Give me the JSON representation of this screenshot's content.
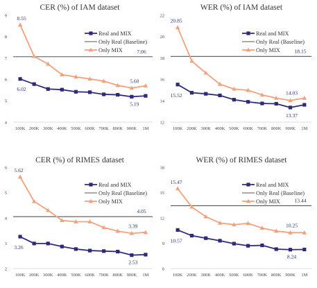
{
  "chart_data": [
    {
      "type": "line",
      "title": "CER (%) of IAM dataset",
      "categories": [
        "100K",
        "200K",
        "300K",
        "400K",
        "500K",
        "600K",
        "700K",
        "800K",
        "900K",
        "1M"
      ],
      "yticks": [
        "4",
        "5",
        "6",
        "7",
        "8",
        "9"
      ],
      "ylim": [
        4,
        9
      ],
      "grid": false,
      "legend_position": "top-right",
      "series": [
        {
          "name": "Real and MIX",
          "color": "#2e2a7a",
          "marker": "square",
          "values": [
            6.02,
            5.78,
            5.55,
            5.52,
            5.42,
            5.4,
            5.3,
            5.28,
            5.19,
            5.23
          ]
        },
        {
          "name": "Only Real (Baseline)",
          "color": "#555555",
          "marker": "none",
          "values": [
            7.06,
            7.06,
            7.06,
            7.06,
            7.06,
            7.06,
            7.06,
            7.06,
            7.06,
            7.06
          ]
        },
        {
          "name": "Only MIX",
          "color": "#f4a07a",
          "marker": "triangle",
          "values": [
            8.55,
            7.08,
            6.72,
            6.22,
            6.12,
            6.02,
            5.92,
            5.72,
            5.6,
            5.7
          ]
        }
      ],
      "data_labels": [
        {
          "series": 0,
          "index": 0,
          "text": "6.02"
        },
        {
          "series": 2,
          "index": 0,
          "text": "8.55"
        },
        {
          "series": 1,
          "index": 9,
          "text": "7.06"
        },
        {
          "series": 2,
          "index": 8,
          "text": "5.60"
        },
        {
          "series": 0,
          "index": 8,
          "text": "5.19"
        }
      ]
    },
    {
      "type": "line",
      "title": "WER (%) of IAM dataset",
      "categories": [
        "100K",
        "200K",
        "300K",
        "400K",
        "500K",
        "600K",
        "700K",
        "800K",
        "900K",
        "1M"
      ],
      "yticks": [
        "12",
        "14",
        "16",
        "18",
        "20",
        "22"
      ],
      "ylim": [
        12,
        22
      ],
      "grid": false,
      "legend_position": "top-right",
      "series": [
        {
          "name": "Real and MIX",
          "color": "#2e2a7a",
          "marker": "square",
          "values": [
            15.52,
            14.75,
            14.65,
            14.5,
            14.1,
            13.9,
            13.75,
            13.72,
            13.37,
            13.62
          ]
        },
        {
          "name": "Only Real (Baseline)",
          "color": "#555555",
          "marker": "none",
          "values": [
            18.15,
            18.15,
            18.15,
            18.15,
            18.15,
            18.15,
            18.15,
            18.15,
            18.15,
            18.15
          ]
        },
        {
          "name": "Only MIX",
          "color": "#f4a07a",
          "marker": "triangle",
          "values": [
            20.85,
            17.72,
            16.6,
            15.55,
            15.1,
            14.98,
            14.55,
            14.25,
            14.03,
            14.25
          ]
        }
      ],
      "data_labels": [
        {
          "series": 2,
          "index": 0,
          "text": "20.85"
        },
        {
          "series": 0,
          "index": 0,
          "text": "15.52"
        },
        {
          "series": 1,
          "index": 9,
          "text": "18.15"
        },
        {
          "series": 2,
          "index": 8,
          "text": "14.03"
        },
        {
          "series": 0,
          "index": 8,
          "text": "13.37"
        }
      ]
    },
    {
      "type": "line",
      "title": "CER (%) of RIMES dataset",
      "categories": [
        "100K",
        "200K",
        "300K",
        "400K",
        "500K",
        "600K",
        "700K",
        "800K",
        "900K",
        "1M"
      ],
      "yticks": [
        "2",
        "3",
        "4",
        "5",
        "6"
      ],
      "ylim": [
        2,
        6
      ],
      "grid": false,
      "legend_position": "top-right",
      "series": [
        {
          "name": "Real and MIX",
          "color": "#2e2a7a",
          "marker": "square",
          "values": [
            3.26,
            2.99,
            2.99,
            2.87,
            2.77,
            2.71,
            2.69,
            2.67,
            2.53,
            2.55
          ]
        },
        {
          "name": "Only Real (Baseline)",
          "color": "#555555",
          "marker": "none",
          "values": [
            4.05,
            4.05,
            4.05,
            4.05,
            4.05,
            4.05,
            4.05,
            4.05,
            4.05,
            4.05
          ]
        },
        {
          "name": "Only MIX",
          "color": "#f4a07a",
          "marker": "triangle",
          "values": [
            5.62,
            4.65,
            4.3,
            3.9,
            3.85,
            3.85,
            3.62,
            3.48,
            3.39,
            3.43
          ]
        }
      ],
      "data_labels": [
        {
          "series": 2,
          "index": 0,
          "text": "5.62"
        },
        {
          "series": 0,
          "index": 0,
          "text": "3.26"
        },
        {
          "series": 1,
          "index": 9,
          "text": "4.05"
        },
        {
          "series": 2,
          "index": 8,
          "text": "3.39"
        },
        {
          "series": 0,
          "index": 8,
          "text": "2.53"
        }
      ]
    },
    {
      "type": "line",
      "title": "WER (%) of RIMES dataset",
      "categories": [
        "100K",
        "200K",
        "300K",
        "400K",
        "500K",
        "600K",
        "700K",
        "800K",
        "900K",
        "1M"
      ],
      "yticks": [
        "6",
        "9",
        "12",
        "15",
        "18"
      ],
      "ylim": [
        6,
        18
      ],
      "grid": false,
      "legend_position": "top-right",
      "series": [
        {
          "name": "Real and MIX",
          "color": "#2e2a7a",
          "marker": "square",
          "values": [
            10.57,
            9.9,
            9.6,
            9.3,
            8.95,
            8.7,
            8.75,
            8.3,
            8.24,
            8.26
          ]
        },
        {
          "name": "Only Real (Baseline)",
          "color": "#555555",
          "marker": "none",
          "values": [
            13.44,
            13.44,
            13.44,
            13.44,
            13.44,
            13.44,
            13.44,
            13.44,
            13.44,
            13.44
          ]
        },
        {
          "name": "Only MIX",
          "color": "#f4a07a",
          "marker": "triangle",
          "values": [
            15.47,
            13.3,
            12.15,
            11.4,
            11.2,
            11.35,
            10.8,
            10.45,
            10.25,
            10.25
          ]
        }
      ],
      "data_labels": [
        {
          "series": 2,
          "index": 0,
          "text": "15.47"
        },
        {
          "series": 0,
          "index": 0,
          "text": "10.57"
        },
        {
          "series": 1,
          "index": 9,
          "text": "13.44"
        },
        {
          "series": 2,
          "index": 8,
          "text": "10.25"
        },
        {
          "series": 0,
          "index": 8,
          "text": "8.24"
        }
      ]
    }
  ]
}
